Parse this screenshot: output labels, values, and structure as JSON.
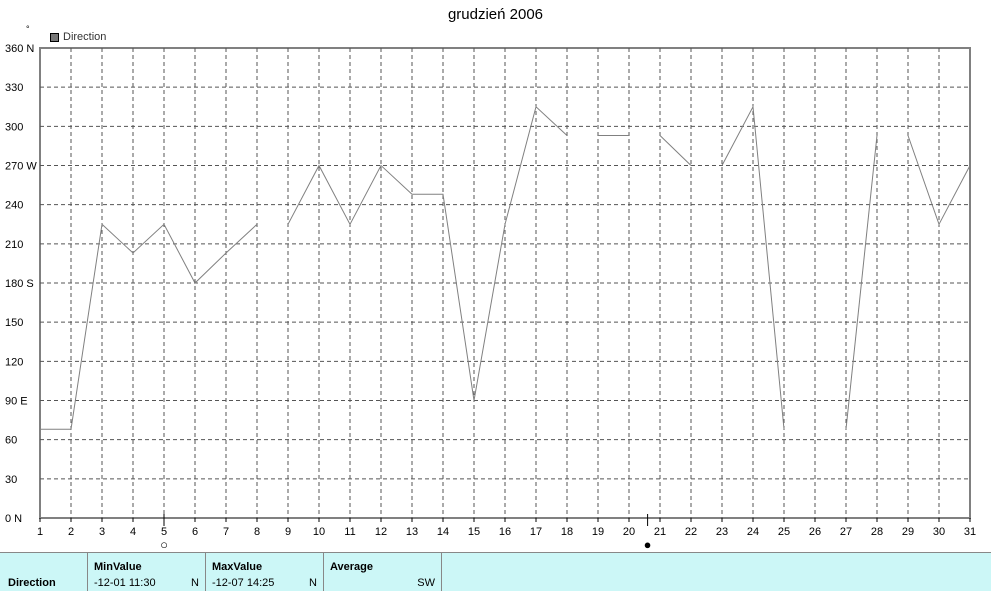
{
  "chart_data": {
    "type": "line",
    "title": "grudzień 2006",
    "unit_label": "°",
    "legend": [
      {
        "name": "Direction",
        "color": "#777777"
      }
    ],
    "ylim": [
      0,
      360
    ],
    "xlim": [
      1,
      31
    ],
    "y_ticks": [
      "0 N",
      "30",
      "60",
      "90 E",
      "120",
      "150",
      "180 S",
      "210",
      "240",
      "270 W",
      "300",
      "330",
      "360 N"
    ],
    "y_tick_values": [
      0,
      30,
      60,
      90,
      120,
      150,
      180,
      210,
      240,
      270,
      300,
      330,
      360
    ],
    "x_ticks": [
      "1",
      "2",
      "3",
      "4",
      "5",
      "6",
      "7",
      "8",
      "9",
      "10",
      "11",
      "12",
      "13",
      "14",
      "15",
      "16",
      "17",
      "18",
      "19",
      "20",
      "21",
      "22",
      "23",
      "24",
      "25",
      "26",
      "27",
      "28",
      "29",
      "30",
      "31"
    ],
    "grid": true,
    "series": [
      {
        "name": "Direction",
        "color": "#808080",
        "segments": [
          [
            [
              1,
              68
            ],
            [
              2,
              68
            ],
            [
              3,
              225
            ],
            [
              4,
              203
            ],
            [
              5,
              225
            ],
            [
              6,
              180
            ],
            [
              7,
              203
            ],
            [
              8,
              225
            ]
          ],
          [
            [
              9,
              225
            ],
            [
              10,
              270
            ],
            [
              11,
              225
            ],
            [
              12,
              270
            ],
            [
              13,
              248
            ],
            [
              14,
              248
            ],
            [
              15,
              90
            ],
            [
              16,
              225
            ],
            [
              17,
              315
            ],
            [
              18,
              293
            ]
          ],
          [
            [
              19,
              293
            ],
            [
              20,
              293
            ]
          ],
          [
            [
              21,
              293
            ],
            [
              22,
              270
            ]
          ],
          [
            [
              23,
              270
            ],
            [
              24,
              315
            ],
            [
              25,
              68
            ]
          ],
          [
            [
              27,
              68
            ],
            [
              28,
              293
            ]
          ],
          [
            [
              29,
              293
            ],
            [
              30,
              225
            ],
            [
              31,
              270
            ]
          ]
        ]
      }
    ],
    "moon_phases": [
      {
        "x": 5,
        "symbol": "○"
      },
      {
        "x": 20.6,
        "symbol": "●"
      }
    ]
  },
  "stats": {
    "row_label": "Direction",
    "min": {
      "header": "MinValue",
      "datetime": "-12-01  11:30",
      "value": "N"
    },
    "max": {
      "header": "MaxValue",
      "datetime": "-12-07  14:25",
      "value": "N"
    },
    "avg": {
      "header": "Average",
      "value": "SW"
    }
  }
}
